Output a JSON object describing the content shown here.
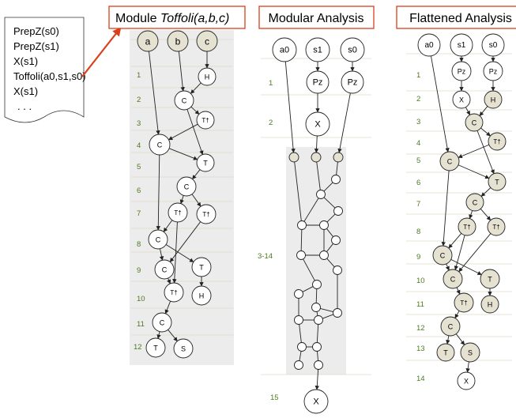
{
  "program": {
    "lines": [
      "PrepZ(s0)",
      "PrepZ(s1)",
      "X(s1)",
      "Toffoli(a0,s1,s0)",
      "X(s1)",
      ". . ."
    ]
  },
  "panels": {
    "module": {
      "title_prefix": "Module ",
      "title_italic": "Toffoli(a,b,c)"
    },
    "modular": {
      "title": "Modular Analysis"
    },
    "flattened": {
      "title": "Flattened Analysis"
    }
  },
  "module_steps": [
    "1",
    "2",
    "3",
    "4",
    "5",
    "6",
    "7",
    "8",
    "9",
    "10",
    "11",
    "12"
  ],
  "modular_steps": [
    "1",
    "2",
    "3-14",
    "15"
  ],
  "flattened_steps": [
    "1",
    "2",
    "3",
    "4",
    "5",
    "6",
    "7",
    "8",
    "9",
    "10",
    "11",
    "12",
    "13",
    "14"
  ],
  "module_nodes": {
    "inputs": [
      "a",
      "b",
      "c"
    ],
    "gates": [
      "H",
      "C",
      "T†",
      "C",
      "T",
      "C",
      "T†",
      "T†",
      "C",
      "C",
      "T",
      "T†",
      "H",
      "C",
      "T",
      "S"
    ]
  },
  "modular_nodes": {
    "inputs": [
      "a0",
      "s1",
      "s0"
    ],
    "gates": [
      "Pz",
      "Pz",
      "X",
      "X"
    ]
  },
  "flattened_nodes": {
    "inputs": [
      "a0",
      "s1",
      "s0"
    ],
    "gates": [
      "Pz",
      "Pz",
      "X",
      "H",
      "C",
      "T†",
      "C",
      "T",
      "C",
      "T†",
      "T†",
      "C",
      "C",
      "T",
      "T†",
      "H",
      "C",
      "T",
      "S",
      "X"
    ]
  },
  "colors": {
    "arrow_red": "#d9401c",
    "box_red": "#d9401c",
    "shaded_bg": "#ececec",
    "node_fill_shaded": "#e6e2d2",
    "step_green": "#4d7a1f"
  }
}
